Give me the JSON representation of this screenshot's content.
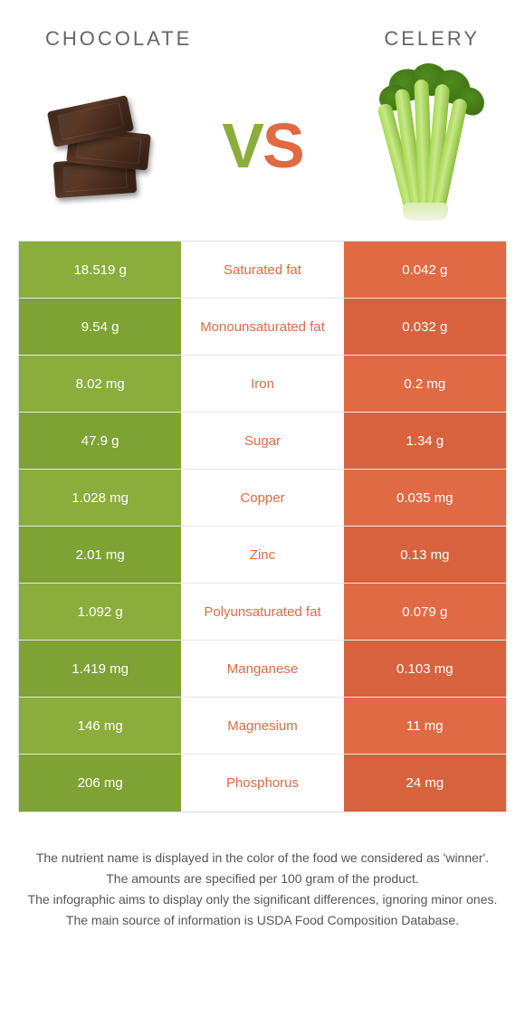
{
  "header": {
    "left_title": "CHOCOLATE",
    "right_title": "CELERY",
    "vs_v": "V",
    "vs_s": "S"
  },
  "colors": {
    "left_food": "#8aad3c",
    "left_food_alt": "#7fa235",
    "right_food": "#e06a44",
    "right_food_alt": "#d8623d",
    "background": "#ffffff",
    "text": "#555"
  },
  "rows": [
    {
      "left": "18.519 g",
      "label": "Saturated fat",
      "right": "0.042 g",
      "winner": "left"
    },
    {
      "left": "9.54 g",
      "label": "Monounsaturated fat",
      "right": "0.032 g",
      "winner": "left"
    },
    {
      "left": "8.02 mg",
      "label": "Iron",
      "right": "0.2 mg",
      "winner": "left"
    },
    {
      "left": "47.9 g",
      "label": "Sugar",
      "right": "1.34 g",
      "winner": "left"
    },
    {
      "left": "1.028 mg",
      "label": "Copper",
      "right": "0.035 mg",
      "winner": "left"
    },
    {
      "left": "2.01 mg",
      "label": "Zinc",
      "right": "0.13 mg",
      "winner": "left"
    },
    {
      "left": "1.092 g",
      "label": "Polyunsaturated fat",
      "right": "0.079 g",
      "winner": "left"
    },
    {
      "left": "1.419 mg",
      "label": "Manganese",
      "right": "0.103 mg",
      "winner": "left"
    },
    {
      "left": "146 mg",
      "label": "Magnesium",
      "right": "11 mg",
      "winner": "left"
    },
    {
      "left": "206 mg",
      "label": "Phosphorus",
      "right": "24 mg",
      "winner": "left"
    }
  ],
  "footer": {
    "line1": "The nutrient name is displayed in the color of the food we considered as 'winner'.",
    "line2": "The amounts are specified per 100 gram of the product.",
    "line3": "The infographic aims to display only the significant differences, ignoring minor ones.",
    "line4": "The main source of information is USDA Food Composition Database."
  }
}
